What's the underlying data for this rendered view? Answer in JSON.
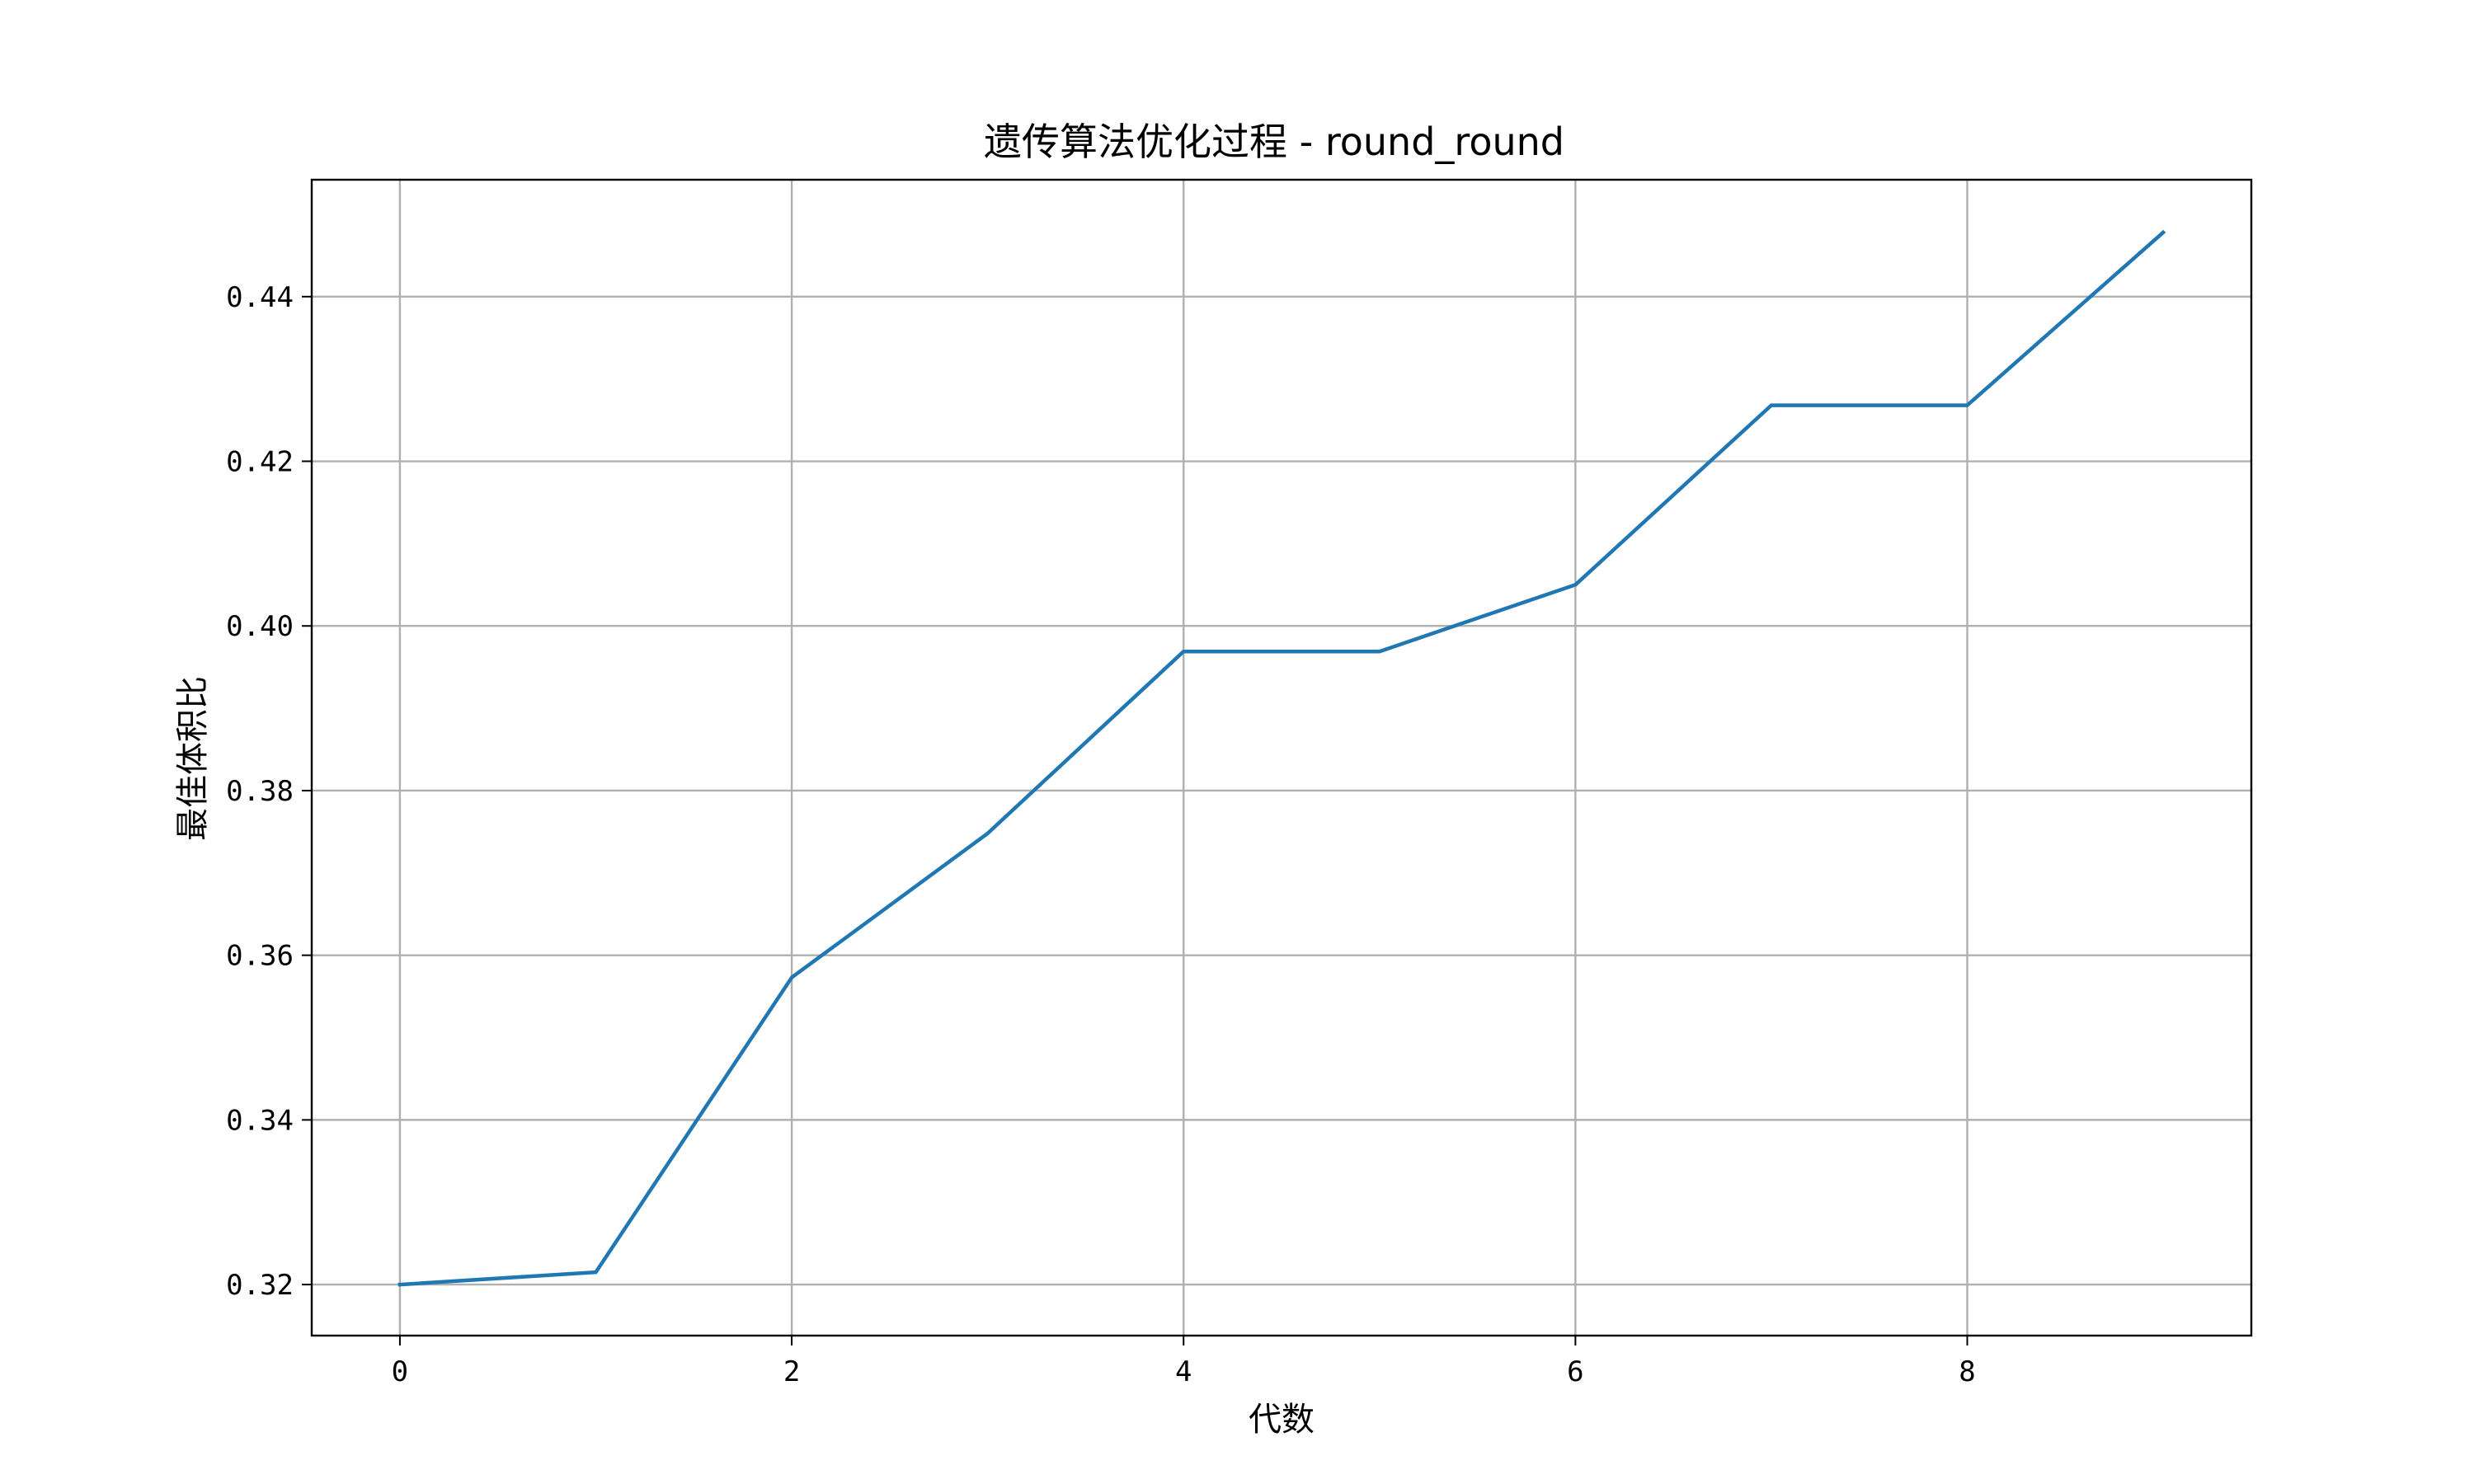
{
  "chart_data": {
    "type": "line",
    "title": "遗传算法优化过程 - round_round",
    "xlabel": "代数",
    "ylabel": "最佳体积比",
    "x": [
      0,
      1,
      2,
      3,
      4,
      5,
      6,
      7,
      8,
      9
    ],
    "series": [
      {
        "values": [
          0.32,
          0.3215,
          0.3573,
          0.3748,
          0.3969,
          0.3969,
          0.405,
          0.4268,
          0.4268,
          0.4478
        ],
        "color": "#1f77b4"
      }
    ],
    "xlim": [
      -0.45,
      9.45
    ],
    "ylim": [
      0.3138,
      0.4542
    ],
    "xticks": [
      0,
      2,
      4,
      6,
      8
    ],
    "xtick_labels": [
      "0",
      "2",
      "4",
      "6",
      "8"
    ],
    "yticks": [
      0.32,
      0.34,
      0.36,
      0.38,
      0.4,
      0.42,
      0.44
    ],
    "ytick_labels": [
      "0.32",
      "0.34",
      "0.36",
      "0.38",
      "0.40",
      "0.42",
      "0.44"
    ],
    "grid": true,
    "legend": false
  }
}
